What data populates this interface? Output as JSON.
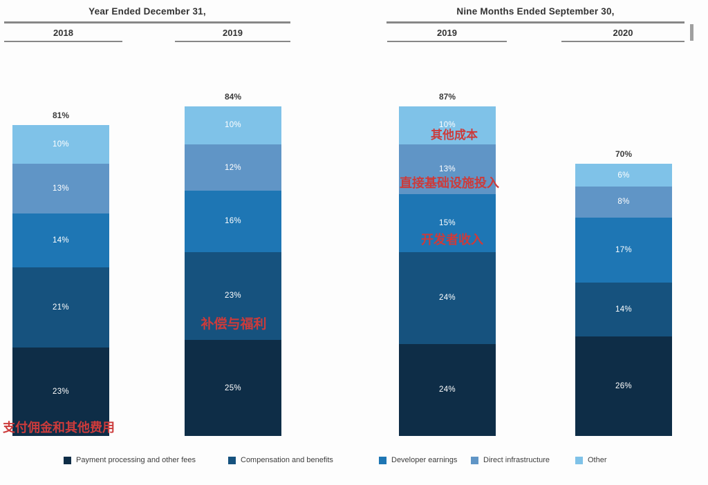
{
  "header": {
    "left_group": {
      "title": "Year Ended December 31,",
      "columns": [
        "2018",
        "2019"
      ]
    },
    "right_group": {
      "title": "Nine Months Ended September 30,",
      "columns": [
        "2019",
        "2020"
      ]
    }
  },
  "chart_data": {
    "type": "bar",
    "variant": "stacked",
    "unit": "%",
    "categories": [
      "2018",
      "2019",
      "2019",
      "2020"
    ],
    "category_groups": [
      "Year Ended December 31,",
      "Year Ended December 31,",
      "Nine Months Ended September 30,",
      "Nine Months Ended September 30,"
    ],
    "series": [
      {
        "name": "Payment processing and other fees",
        "color": "#0e2d47",
        "values": [
          23,
          25,
          24,
          26
        ]
      },
      {
        "name": "Compensation and benefits",
        "color": "#16527e",
        "values": [
          21,
          23,
          24,
          14
        ]
      },
      {
        "name": "Developer earnings",
        "color": "#1e76b4",
        "values": [
          14,
          16,
          15,
          17
        ]
      },
      {
        "name": "Direct infrastructure",
        "color": "#6095c6",
        "values": [
          13,
          12,
          13,
          8
        ]
      },
      {
        "name": "Other",
        "color": "#7fc2e8",
        "values": [
          10,
          10,
          10,
          6
        ]
      }
    ],
    "bar_total_labels": [
      "81%",
      "84%",
      "87%",
      "70%"
    ],
    "segment_label_suffix": "%",
    "legend_position": "bottom",
    "legend": [
      "Payment processing and other fees",
      "Compensation and benefits",
      "Developer earnings",
      "Direct infrastructure",
      "Other"
    ]
  },
  "annotations": {
    "color": "#cc3b3b",
    "items": [
      {
        "text": "支付佣金和其他费用",
        "attached_to": "Payment processing and other fees (2018, 23%)"
      },
      {
        "text": "补偿与福利",
        "attached_to": "Compensation and benefits (2019, 23%)"
      },
      {
        "text": "其他成本",
        "attached_to": "Other (2019 nine months, 10%)"
      },
      {
        "text": "直接基础设施投入",
        "attached_to": "Direct infrastructure (2019 nine months, 13%)"
      },
      {
        "text": "开发者收入",
        "attached_to": "Developer earnings (2019 nine months, 15%)"
      }
    ]
  },
  "colors": {
    "rule": "#878787",
    "total_label": "#3b3b3b",
    "segment_label": "#ffffff",
    "legend_text": "#3c3c3c",
    "annotation_red": "#cc3b3b",
    "background": "#fdfdfd"
  }
}
